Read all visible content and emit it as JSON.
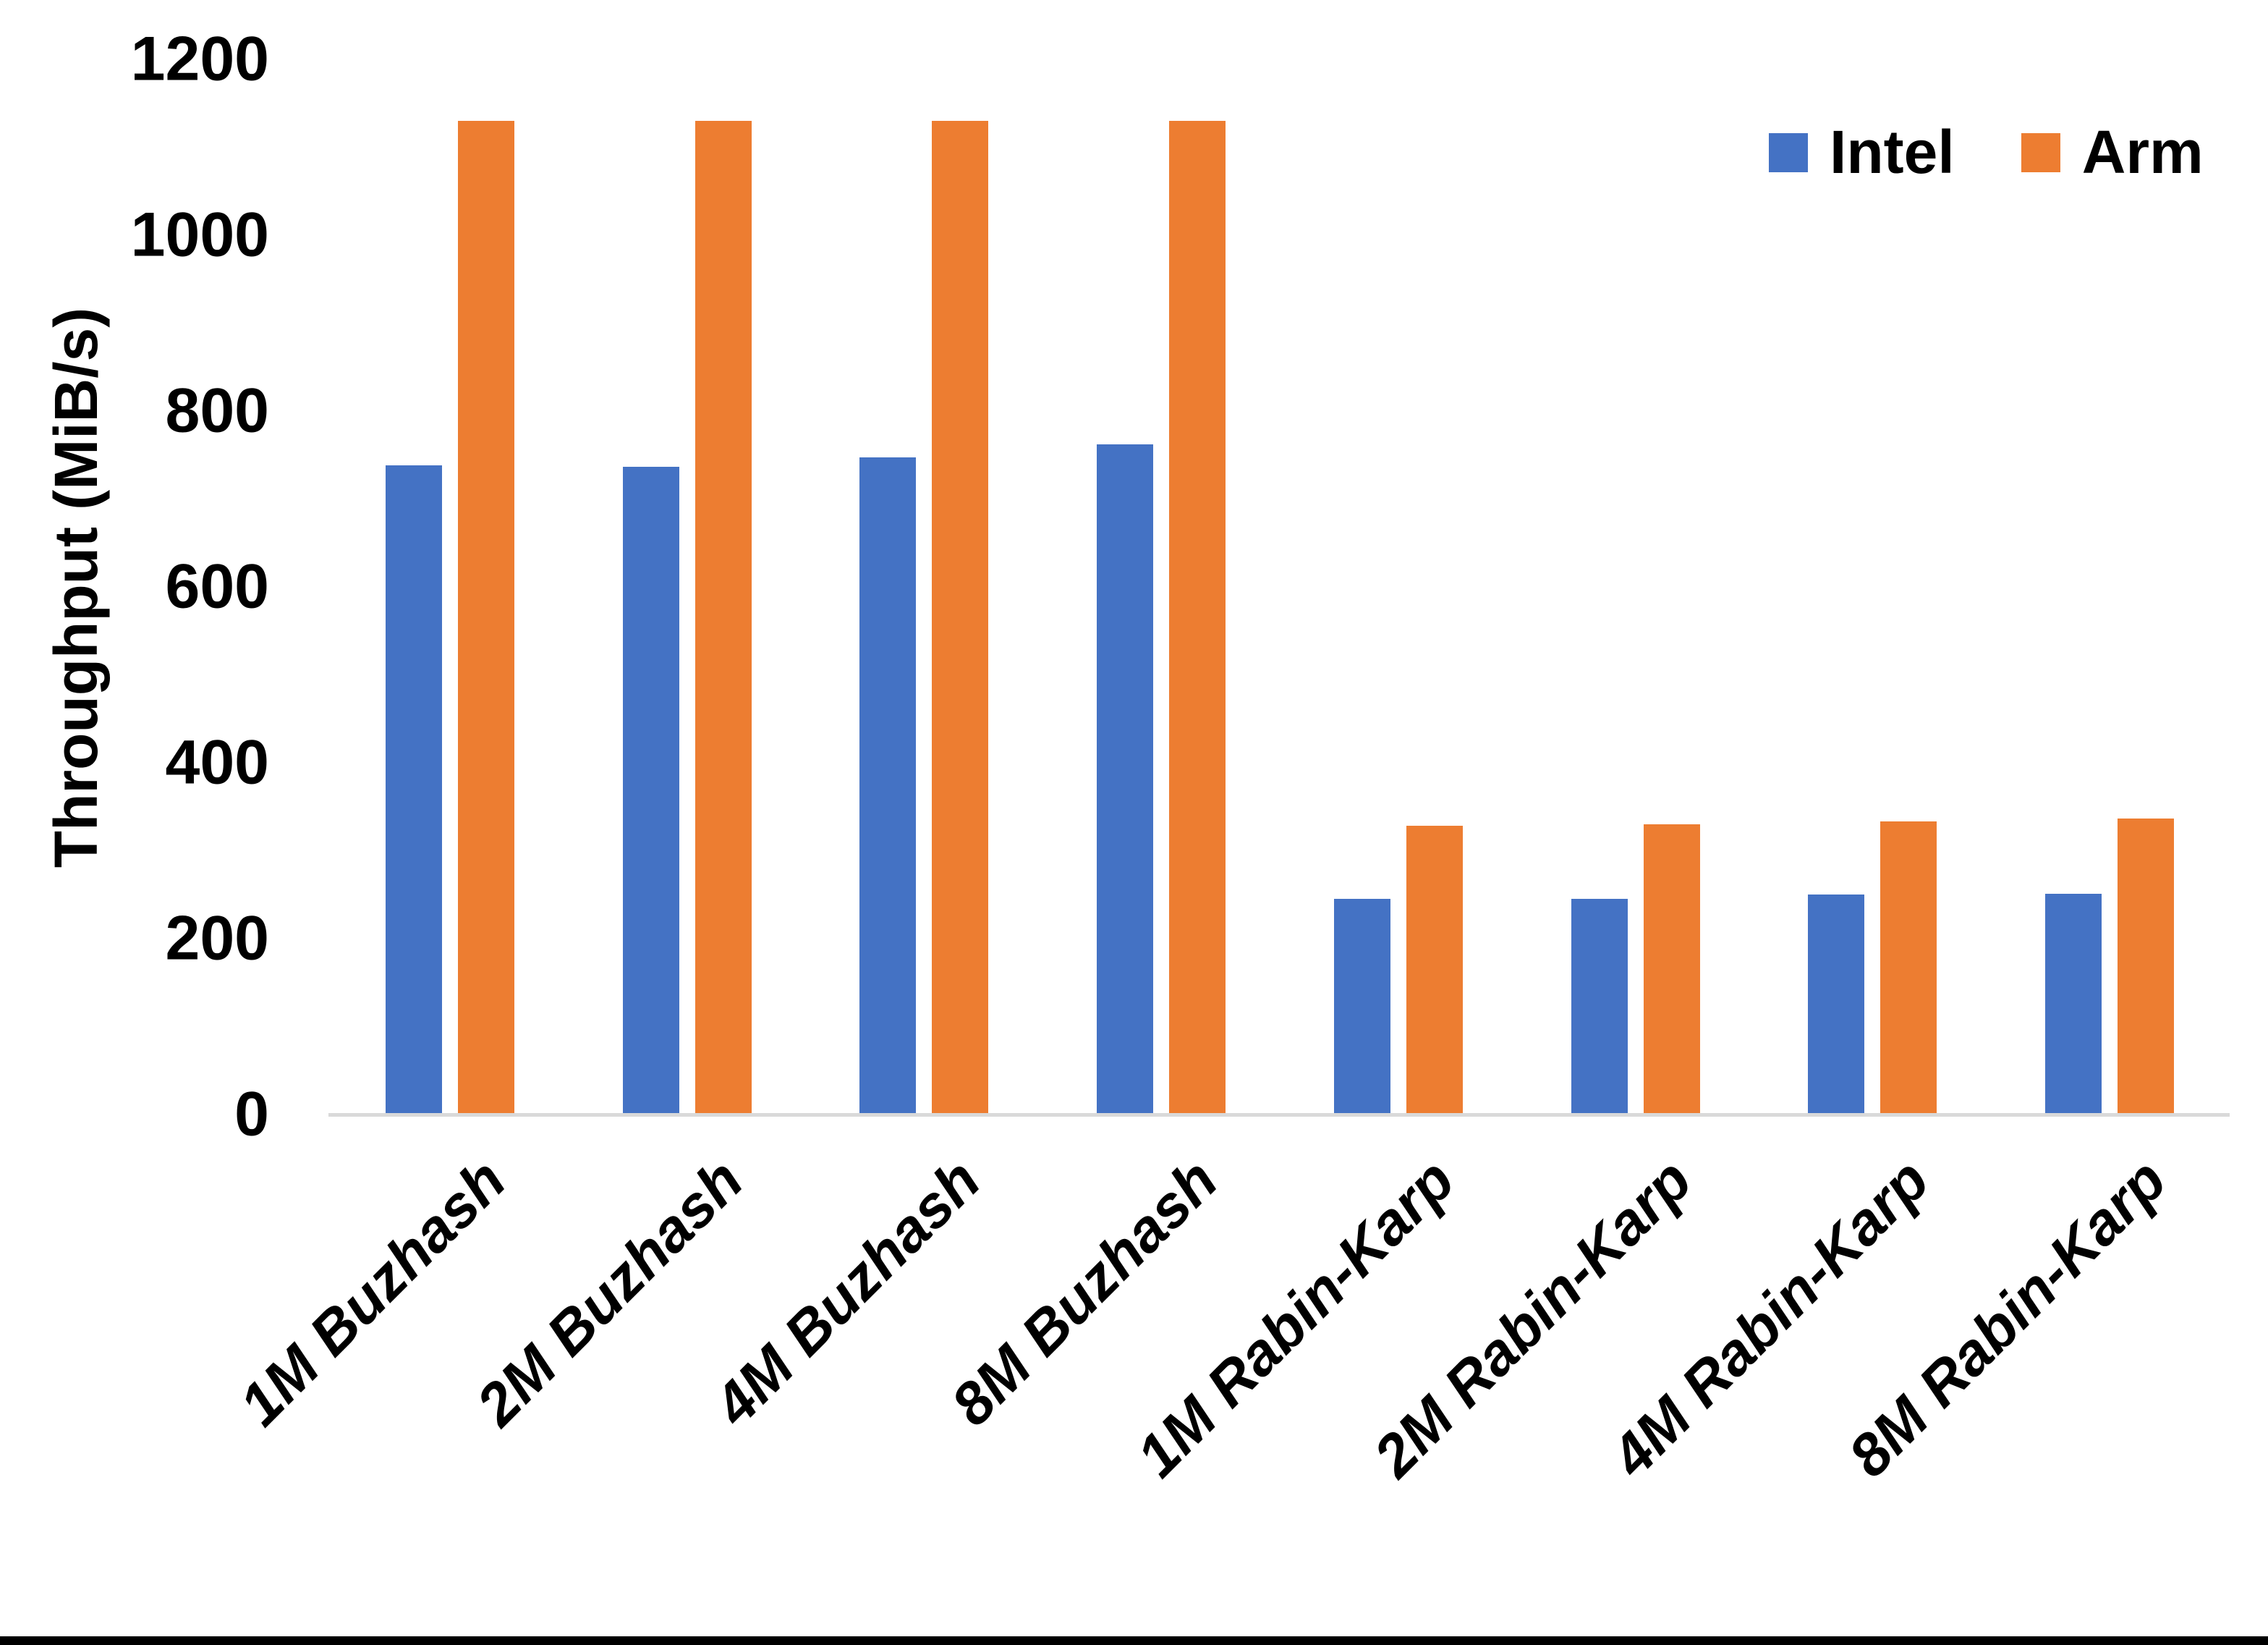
{
  "chart_data": {
    "type": "bar",
    "title": "",
    "xlabel": "",
    "ylabel": "Throughput (MiB/s)",
    "ylim": [
      0,
      1200
    ],
    "yticks": [
      0,
      200,
      400,
      600,
      800,
      1000,
      1200
    ],
    "grid": false,
    "legend_position": "top-right",
    "categories": [
      "1M Buzhash",
      "2M Buzhash",
      "4M Buzhash",
      "8M Buzhash",
      "1M Rabin-Karp",
      "2M Rabin-Karp",
      "4M Rabin-Karp",
      "8M Rabin-Karp"
    ],
    "series": [
      {
        "name": "Intel",
        "color": "#4472C4",
        "values": [
          738,
          737,
          747,
          762,
          245,
          245,
          250,
          251
        ]
      },
      {
        "name": "Arm",
        "color": "#ED7D31",
        "values": [
          1130,
          1130,
          1130,
          1130,
          328,
          330,
          333,
          337
        ]
      }
    ],
    "axis_line_color": "#D9D9D9",
    "text_color": "#000000",
    "background_color": "#FFFFFF",
    "bottom_border_color": "#000000"
  }
}
